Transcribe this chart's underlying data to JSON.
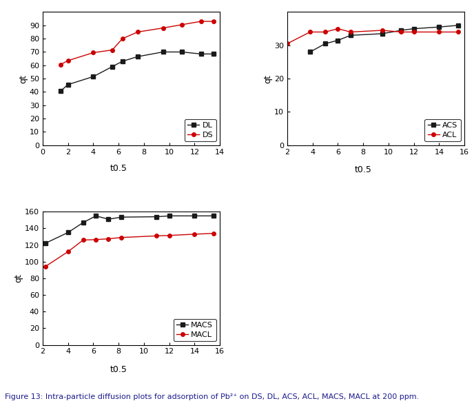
{
  "plot1": {
    "DL_x": [
      1.4,
      2.0,
      4.0,
      5.5,
      6.3,
      7.5,
      9.5,
      11.0,
      12.5,
      13.5
    ],
    "DL_y": [
      40.5,
      45.5,
      51.5,
      59.0,
      63.0,
      66.5,
      70.0,
      70.0,
      68.5,
      68.5
    ],
    "DS_x": [
      1.4,
      2.0,
      4.0,
      5.5,
      6.3,
      7.5,
      9.5,
      11.0,
      12.5,
      13.5
    ],
    "DS_y": [
      60.5,
      63.5,
      69.5,
      71.5,
      80.0,
      85.0,
      88.0,
      90.5,
      93.0,
      93.0
    ],
    "xlabel": "t0.5",
    "ylabel": "qt",
    "xlim": [
      0,
      14
    ],
    "ylim": [
      0,
      100
    ],
    "xticks": [
      0,
      2,
      4,
      6,
      8,
      10,
      12,
      14
    ],
    "yticks": [
      0,
      10,
      20,
      30,
      40,
      50,
      60,
      70,
      80,
      90
    ]
  },
  "plot2": {
    "ACS_x": [
      3.8,
      5.0,
      6.0,
      7.0,
      9.5,
      11.0,
      12.0,
      14.0,
      15.5
    ],
    "ACS_y": [
      28.0,
      30.5,
      31.5,
      33.0,
      33.5,
      34.5,
      35.0,
      35.5,
      36.0
    ],
    "ACL_x": [
      2.0,
      3.8,
      5.0,
      6.0,
      7.0,
      9.5,
      11.0,
      12.0,
      14.0,
      15.5
    ],
    "ACL_y": [
      30.5,
      34.0,
      34.0,
      35.0,
      34.0,
      34.5,
      34.0,
      34.0,
      34.0,
      34.0
    ],
    "xlabel": "t0.5",
    "ylabel": "qt",
    "xlim": [
      2,
      16
    ],
    "ylim": [
      0,
      40
    ],
    "xticks": [
      2,
      4,
      6,
      8,
      10,
      12,
      14,
      16
    ],
    "yticks": [
      0,
      10,
      20,
      30
    ]
  },
  "plot3": {
    "MACS_x": [
      2.2,
      4.0,
      5.2,
      6.2,
      7.2,
      8.2,
      11.0,
      12.0,
      14.0,
      15.5
    ],
    "MACS_y": [
      122.0,
      135.0,
      147.0,
      155.0,
      151.0,
      153.5,
      154.0,
      155.0,
      155.0,
      155.0
    ],
    "MACL_x": [
      2.2,
      4.0,
      5.2,
      6.2,
      7.2,
      8.2,
      11.0,
      12.0,
      14.0,
      15.5
    ],
    "MACL_y": [
      94.0,
      112.0,
      126.0,
      126.5,
      127.5,
      129.0,
      131.0,
      131.5,
      133.0,
      134.0
    ],
    "xlabel": "t0.5",
    "ylabel": "qt",
    "xlim": [
      2,
      16
    ],
    "ylim": [
      0,
      160
    ],
    "xticks": [
      2,
      4,
      6,
      8,
      10,
      12,
      14,
      16
    ],
    "yticks": [
      0,
      20,
      40,
      60,
      80,
      100,
      120,
      140,
      160
    ]
  },
  "caption": "Figure 13: Intra-particle diffusion plots for adsorption of Pb2+ on DS, DL, ACS, ACL, MACS, MACL at 200 ppm.",
  "black_color": "#1a1a1a",
  "red_color": "#cc0000",
  "marker_black": "s",
  "marker_red": "o",
  "line_width": 1.0,
  "marker_size": 4,
  "font_size_tick": 8,
  "font_size_label": 9,
  "font_size_legend": 8,
  "font_size_caption": 8,
  "caption_color": "#1a1a8c"
}
